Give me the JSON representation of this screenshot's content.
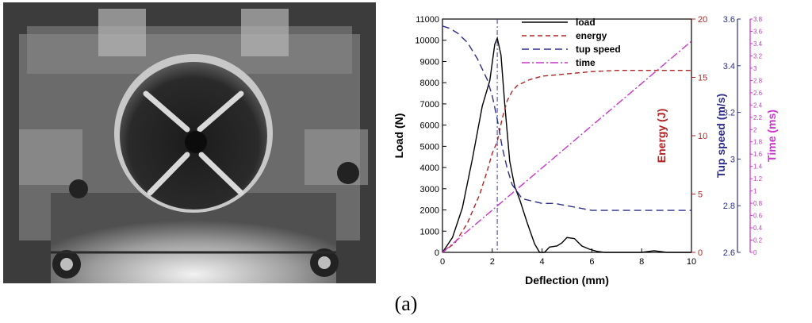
{
  "figure": {
    "caption": "(a)",
    "photo": {
      "description_icon": "impact-test-fixture-photo"
    }
  },
  "chart_data": {
    "type": "line",
    "x": {
      "label": "Deflection (mm)",
      "range": [
        0,
        10
      ],
      "ticks": [
        0,
        2,
        4,
        6,
        8,
        10
      ]
    },
    "axes": {
      "load": {
        "label": "Load (N)",
        "range": [
          0,
          11000
        ],
        "ticks": [
          0,
          1000,
          2000,
          3000,
          4000,
          5000,
          6000,
          7000,
          8000,
          9000,
          10000,
          11000
        ],
        "color": "#000000"
      },
      "energy": {
        "label": "Energy (J)",
        "range": [
          0,
          20
        ],
        "ticks": [
          0,
          5,
          10,
          15,
          20
        ],
        "color": "#b22222"
      },
      "speed": {
        "label": "Tup speed (m/s)",
        "range": [
          2.6,
          3.6
        ],
        "ticks": [
          2.6,
          2.8,
          3,
          3.2,
          3.4,
          3.6
        ],
        "color": "#2e2e8c"
      },
      "time": {
        "label": "Time (ms)",
        "range": [
          0,
          3.8
        ],
        "ticks": [
          0,
          0.2,
          0.4,
          0.6,
          0.8,
          1,
          1.2,
          1.4,
          1.6,
          1.8,
          2,
          2.2,
          2.4,
          2.6,
          2.8,
          3,
          3.2,
          3.4,
          3.6,
          3.8
        ],
        "color": "#cc33cc"
      }
    },
    "series": [
      {
        "name": "load",
        "axis": "load",
        "color": "#000000",
        "dash": "solid",
        "x": [
          0,
          0.4,
          0.8,
          1.2,
          1.6,
          1.9,
          2.1,
          2.2,
          2.35,
          2.5,
          2.7,
          2.9,
          3.1,
          3.4,
          3.7,
          3.9,
          4.1,
          4.3,
          4.6,
          4.8,
          5.0,
          5.3,
          5.6,
          5.9,
          6.2,
          6.5,
          7.0,
          8.0,
          8.5,
          9.0,
          10.0
        ],
        "y": [
          0,
          700,
          2100,
          4400,
          6900,
          8100,
          9800,
          10100,
          9300,
          7000,
          4300,
          3100,
          2500,
          1400,
          400,
          0,
          0,
          250,
          300,
          450,
          700,
          650,
          300,
          150,
          50,
          0,
          0,
          0,
          80,
          0,
          0
        ]
      },
      {
        "name": "energy",
        "axis": "energy",
        "color": "#b22222",
        "dash": "6,4",
        "x": [
          0,
          0.5,
          1.0,
          1.5,
          1.8,
          2.0,
          2.2,
          2.4,
          2.6,
          2.8,
          3.0,
          3.5,
          4.0,
          5.0,
          6.0,
          7.0,
          8.0,
          9.0,
          10.0
        ],
        "y": [
          0,
          0.8,
          2.5,
          5.0,
          7.0,
          8.5,
          9.5,
          11.5,
          13.0,
          13.8,
          14.3,
          14.8,
          15.1,
          15.3,
          15.5,
          15.6,
          15.6,
          15.6,
          15.6
        ]
      },
      {
        "name": "tup speed",
        "axis": "speed",
        "color": "#2e2e8c",
        "dash": "9,5",
        "x": [
          0,
          0.3,
          0.6,
          1.0,
          1.4,
          1.8,
          2.0,
          2.2,
          2.4,
          2.6,
          2.8,
          3.2,
          3.6,
          4.0,
          4.5,
          5.0,
          5.5,
          6.0,
          7.0,
          8.0,
          9.0,
          10.0
        ],
        "y": [
          3.57,
          3.56,
          3.54,
          3.5,
          3.43,
          3.34,
          3.27,
          3.17,
          3.05,
          2.96,
          2.89,
          2.83,
          2.82,
          2.81,
          2.81,
          2.8,
          2.79,
          2.78,
          2.78,
          2.78,
          2.78,
          2.78
        ]
      },
      {
        "name": "time",
        "axis": "time",
        "color": "#cc33cc",
        "dash": "10,3,2,3",
        "x": [
          0,
          10
        ],
        "y": [
          0,
          3.44
        ]
      }
    ],
    "annotations": [
      {
        "type": "vline",
        "x": 2.2,
        "color": "#3a3aa0",
        "dash": "6,3,2,3"
      }
    ],
    "legend": {
      "placement": "top-center",
      "entries": [
        "load",
        "energy",
        "tup speed",
        "time"
      ]
    },
    "grid": false
  }
}
